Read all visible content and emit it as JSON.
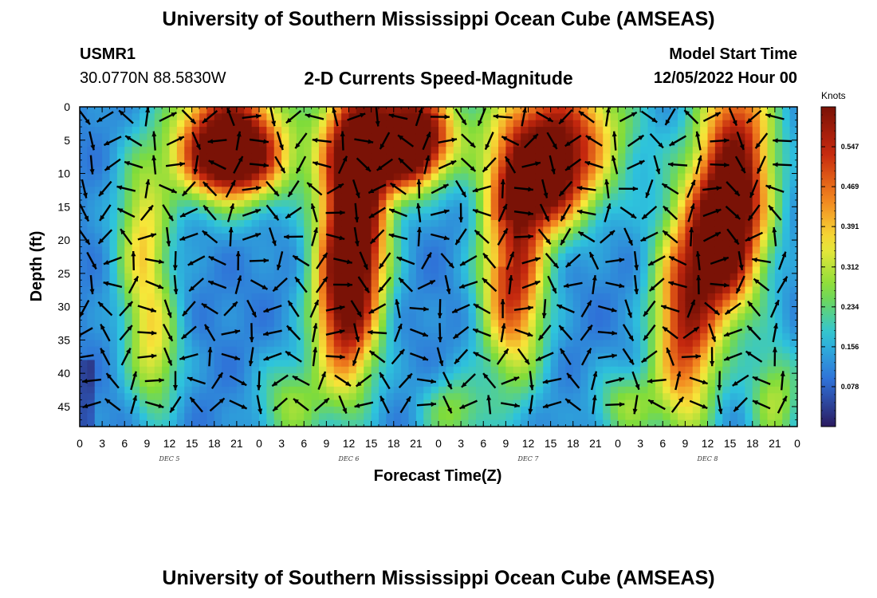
{
  "page": {
    "title": "University of Southern Mississippi Ocean Cube (AMSEAS)",
    "station_id": "USMR1",
    "location": "30.0770N  88.5830W",
    "subtitle": "2-D Currents Speed-Magnitude",
    "model_start_label": "Model Start Time",
    "model_start_value": "12/05/2022 Hour 00",
    "footer_title": "University of Southern Mississippi Ocean Cube (AMSEAS)"
  },
  "chart_data": {
    "type": "heatmap",
    "title": "2-D Currents Speed-Magnitude",
    "xlabel": "Forecast Time(Z)",
    "ylabel": "Depth (ft)",
    "x_range_hours": [
      0,
      96
    ],
    "y_range_ft": [
      0,
      48
    ],
    "y_ticks": [
      0,
      5,
      10,
      15,
      20,
      25,
      30,
      35,
      40,
      45
    ],
    "x_tick_hours": [
      0,
      3,
      6,
      9,
      12,
      15,
      18,
      21,
      24,
      27,
      30,
      33,
      36,
      39,
      42,
      45,
      48,
      51,
      54,
      57,
      60,
      63,
      66,
      69,
      72,
      75,
      78,
      81,
      84,
      87,
      90,
      93,
      96
    ],
    "x_tick_labels": [
      "0",
      "3",
      "6",
      "9",
      "12",
      "15",
      "18",
      "21",
      "0",
      "3",
      "6",
      "9",
      "12",
      "15",
      "18",
      "21",
      "0",
      "3",
      "6",
      "9",
      "12",
      "15",
      "18",
      "21",
      "0",
      "3",
      "6",
      "9",
      "12",
      "15",
      "18",
      "21",
      "0"
    ],
    "day_labels": [
      {
        "text": "DEC 5",
        "hour": 12
      },
      {
        "text": "DEC 6",
        "hour": 36
      },
      {
        "text": "DEC 7",
        "hour": 60
      },
      {
        "text": "DEC 8",
        "hour": 84
      }
    ],
    "colorbar": {
      "units": "Knots",
      "min": 0.0,
      "max": 0.625,
      "tick_values": [
        0.078,
        0.156,
        0.234,
        0.312,
        0.391,
        0.469,
        0.547
      ],
      "tick_labels": [
        "0.078",
        "0.156",
        "0.234",
        "0.312",
        "0.391",
        "0.469",
        "0.547"
      ]
    },
    "colors": {
      "dark_blue": "#2a1a5e",
      "blue": "#2f6fd8",
      "cyan": "#2ec4dc",
      "green": "#7fdc3a",
      "yellow": "#f6e83a",
      "orange": "#f2821e",
      "red": "#c5280e",
      "dark_red": "#7a1206",
      "arrow": "#000000"
    }
  }
}
